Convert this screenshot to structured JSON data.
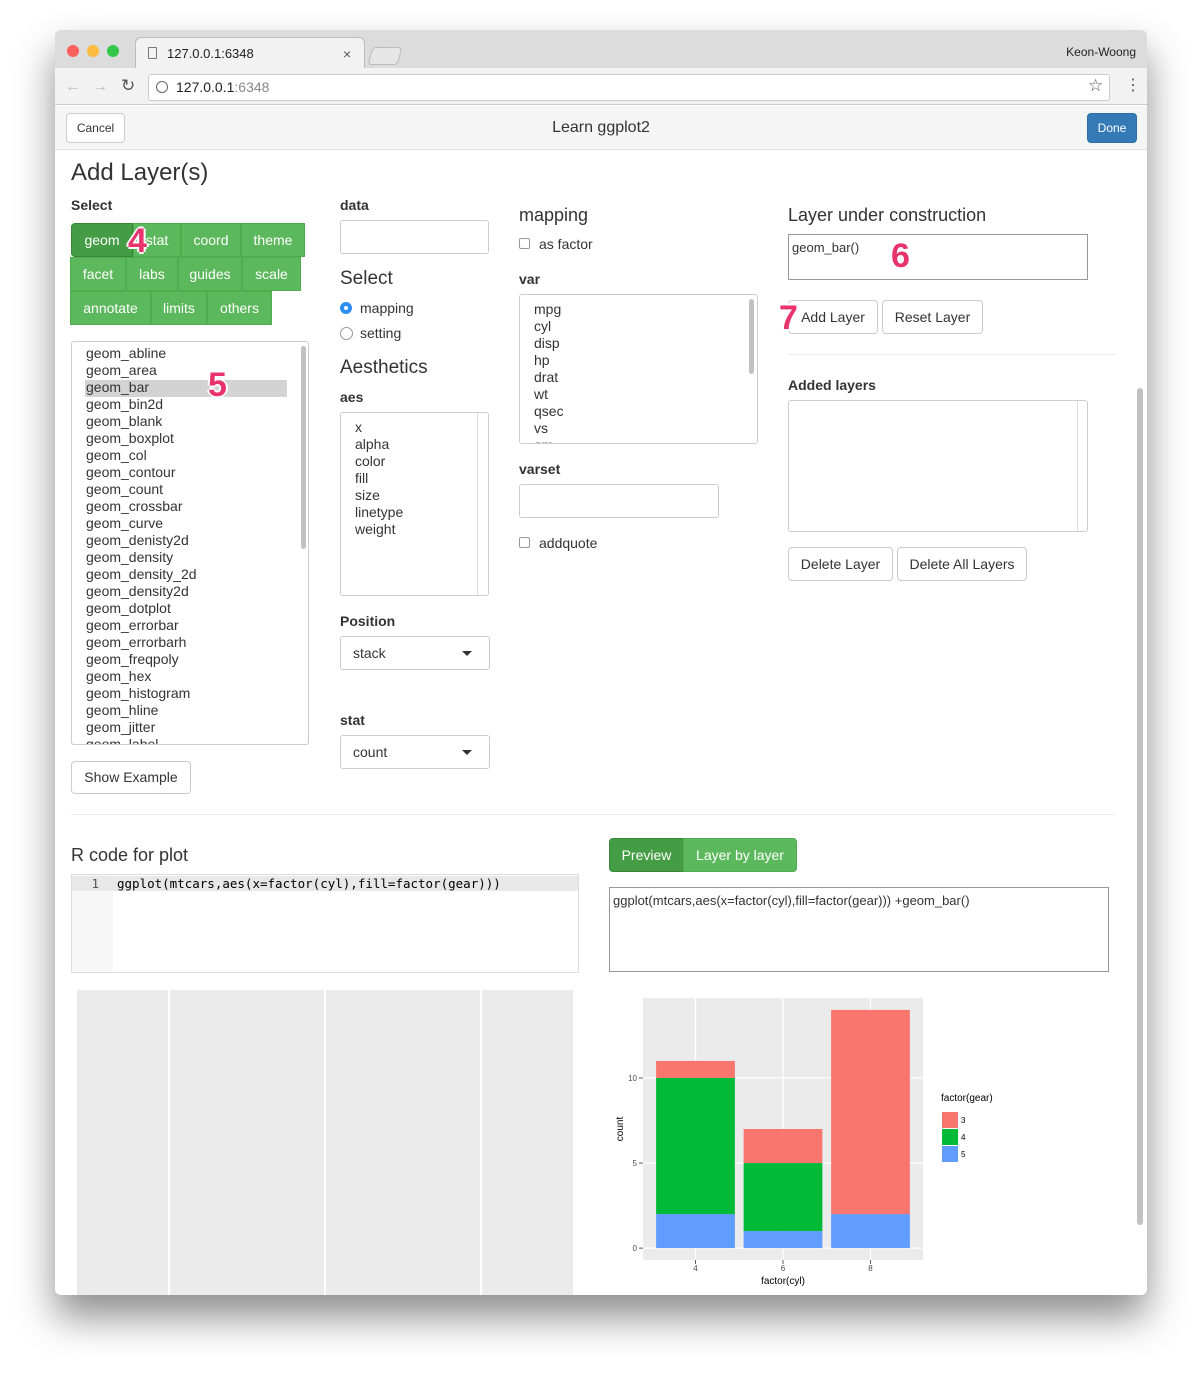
{
  "browser": {
    "tab_title": "127.0.0.1:6348",
    "user": "Keon-Woong",
    "url_host": "127.0.0.1",
    "url_port": ":6348"
  },
  "toolbar": {
    "cancel": "Cancel",
    "title": "Learn ggplot2",
    "done": "Done"
  },
  "heading": "Add Layer(s)",
  "select": {
    "label": "Select",
    "buttons": [
      "geom",
      "stat",
      "coord",
      "theme",
      "facet",
      "labs",
      "guides",
      "scale",
      "annotate",
      "limits",
      "others"
    ]
  },
  "geom_list": [
    "geom_abline",
    "geom_area",
    "geom_bar",
    "geom_bin2d",
    "geom_blank",
    "geom_boxplot",
    "geom_col",
    "geom_contour",
    "geom_count",
    "geom_crossbar",
    "geom_curve",
    "geom_denisty2d",
    "geom_density",
    "geom_density_2d",
    "geom_density2d",
    "geom_dotplot",
    "geom_errorbar",
    "geom_errorbarh",
    "geom_freqpoly",
    "geom_hex",
    "geom_histogram",
    "geom_hline",
    "geom_jitter",
    "geom_label"
  ],
  "show_example": "Show Example",
  "data_label": "data",
  "select_type": {
    "label": "Select",
    "options": [
      "mapping",
      "setting"
    ]
  },
  "aesthetics": {
    "heading": "Aesthetics",
    "label": "aes",
    "items": [
      "x",
      "alpha",
      "color",
      "fill",
      "size",
      "linetype",
      "weight"
    ]
  },
  "position": {
    "label": "Position",
    "value": "stack"
  },
  "stat": {
    "label": "stat",
    "value": "count"
  },
  "mapping": {
    "heading": "mapping",
    "as_factor": "as factor",
    "var_label": "var",
    "vars": [
      "mpg",
      "cyl",
      "disp",
      "hp",
      "drat",
      "wt",
      "qsec",
      "vs",
      "am"
    ],
    "varset_label": "varset",
    "addquote": "addquote"
  },
  "layer": {
    "heading": "Layer under construction",
    "text": "geom_bar()",
    "add": "Add Layer",
    "reset": "Reset Layer",
    "added_heading": "Added layers",
    "delete": "Delete Layer",
    "delete_all": "Delete All Layers"
  },
  "annotations": [
    "4",
    "5",
    "6",
    "7"
  ],
  "code": {
    "heading": "R code for plot",
    "line_number": "1",
    "text": "ggplot(mtcars,aes(x=factor(cyl),fill=factor(gear)))"
  },
  "tabs": [
    "Preview",
    "Layer by layer"
  ],
  "preview_text": "ggplot(mtcars,aes(x=factor(cyl),fill=factor(gear))) +geom_bar()",
  "chart_data": {
    "type": "bar",
    "stacked": true,
    "x_label": "factor(cyl)",
    "y_label": "count",
    "legend_title": "factor(gear)",
    "legend": "right",
    "categories": [
      "4",
      "6",
      "8"
    ],
    "series": [
      {
        "name": "3",
        "color": "#F8766D",
        "values": [
          1,
          2,
          12
        ]
      },
      {
        "name": "4",
        "color": "#00BA38",
        "values": [
          8,
          4,
          0
        ]
      },
      {
        "name": "5",
        "color": "#619CFF",
        "values": [
          2,
          1,
          2
        ]
      }
    ],
    "ylim": [
      -0.7,
      14.7
    ],
    "yticks": [
      0,
      5,
      10
    ],
    "grid": true
  }
}
